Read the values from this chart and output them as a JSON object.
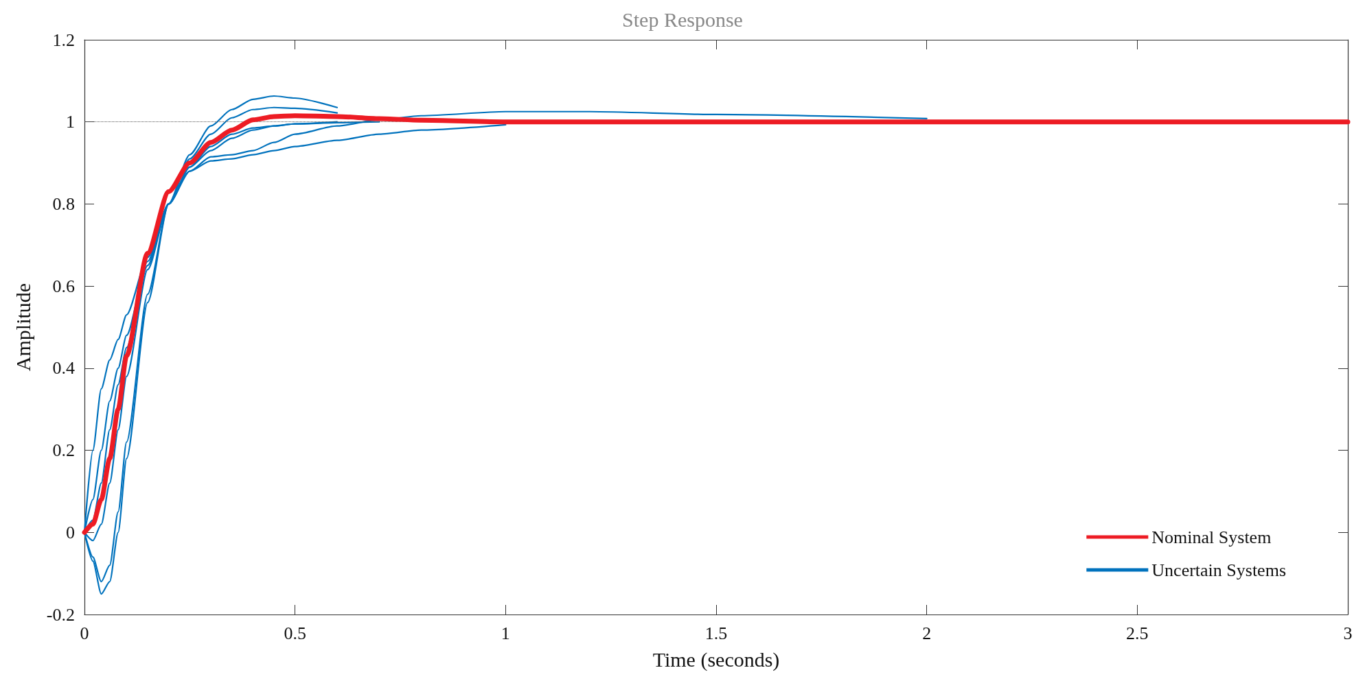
{
  "chart_data": {
    "type": "line",
    "title": "Step Response",
    "xlabel": "Time (seconds)",
    "ylabel": "Amplitude",
    "x": [
      0,
      0.02,
      0.04,
      0.06,
      0.08,
      0.1,
      0.15,
      0.2,
      0.25,
      0.3,
      0.35,
      0.4,
      0.45,
      0.5,
      0.6,
      0.7,
      0.8,
      1.0,
      1.2,
      1.5,
      2.0,
      2.5,
      3.0
    ],
    "series": [
      {
        "name": "Uncertain Systems",
        "color": "#0072bd",
        "values": [
          0,
          -0.07,
          -0.15,
          -0.12,
          0.0,
          0.18,
          0.56,
          0.8,
          0.92,
          0.99,
          1.03,
          1.055,
          1.063,
          1.058,
          1.035,
          null,
          null,
          null,
          null,
          null,
          null,
          null,
          null
        ]
      },
      {
        "color": "#0072bd",
        "values": [
          0,
          -0.06,
          -0.12,
          -0.08,
          0.05,
          0.22,
          0.58,
          0.8,
          0.91,
          0.97,
          1.01,
          1.03,
          1.035,
          1.033,
          1.022,
          null,
          null,
          null,
          null,
          null,
          null,
          null,
          null
        ]
      },
      {
        "color": "#0072bd",
        "values": [
          0,
          -0.02,
          0.02,
          0.12,
          0.25,
          0.38,
          0.64,
          0.8,
          0.89,
          0.94,
          0.97,
          0.985,
          0.99,
          0.995,
          0.998,
          1.0,
          null,
          null,
          null,
          null,
          null,
          null,
          null
        ]
      },
      {
        "color": "#0072bd",
        "values": [
          0,
          0.2,
          0.35,
          0.42,
          0.47,
          0.53,
          0.67,
          0.8,
          0.88,
          0.915,
          0.92,
          0.93,
          0.95,
          0.97,
          0.99,
          1.005,
          1.015,
          1.025,
          1.025,
          1.018,
          1.008,
          null,
          null
        ]
      },
      {
        "color": "#0072bd",
        "values": [
          0,
          0.08,
          0.2,
          0.32,
          0.4,
          0.48,
          0.66,
          0.8,
          0.88,
          0.905,
          0.91,
          0.92,
          0.93,
          0.94,
          0.955,
          0.97,
          0.98,
          0.993,
          null,
          null,
          null,
          null,
          null
        ]
      },
      {
        "color": "#0072bd",
        "values": [
          0,
          0.03,
          0.12,
          0.25,
          0.36,
          0.45,
          0.65,
          0.8,
          0.89,
          0.93,
          0.96,
          0.98,
          0.99,
          0.995,
          1.0,
          null,
          null,
          null,
          null,
          null,
          null,
          null,
          null
        ]
      },
      {
        "name": "Nominal System",
        "color": "#ed1c24",
        "values": [
          0,
          0.02,
          0.08,
          0.18,
          0.3,
          0.43,
          0.68,
          0.83,
          0.9,
          0.95,
          0.98,
          1.005,
          1.013,
          1.015,
          1.013,
          1.008,
          1.004,
          1.0,
          1.0,
          1.0,
          1.0,
          1.0,
          1.0
        ]
      }
    ],
    "xlim": [
      0,
      3
    ],
    "xticks": [
      0,
      0.5,
      1,
      1.5,
      2,
      2.5,
      3
    ],
    "ylim": [
      -0.2,
      1.2
    ],
    "yticks": [
      -0.2,
      0,
      0.2,
      0.4,
      0.6,
      0.8,
      1,
      1.2
    ],
    "ref_lines": [
      {
        "axis": "y",
        "value": 1,
        "label": null,
        "color": "#555555",
        "line_style": "dotted"
      }
    ],
    "grid": false,
    "legend": "bottom right",
    "line_style": "solid"
  }
}
